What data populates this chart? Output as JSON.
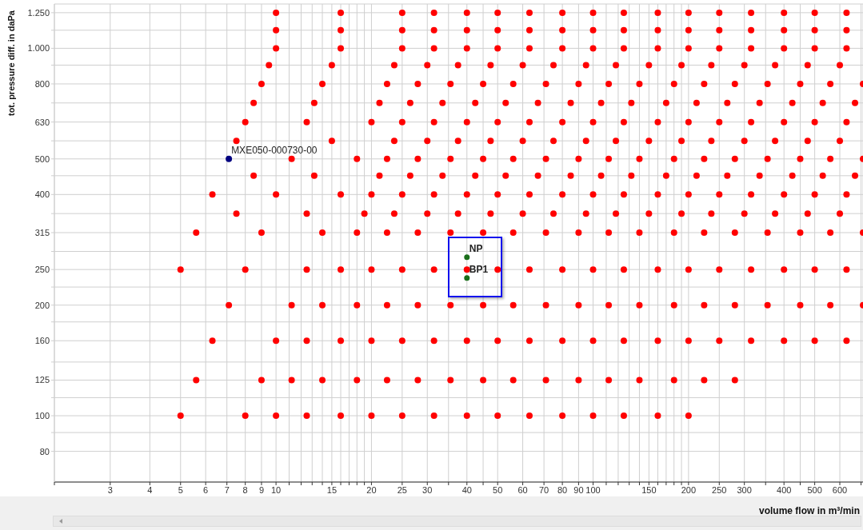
{
  "chart_data": {
    "type": "scatter",
    "xlabel": "volume flow in m³/min",
    "ylabel": "tot. pressure diff. in daPa",
    "log": "xy",
    "grid": true,
    "marker": "circle",
    "xlim": [
      2,
      710
    ],
    "ylim": [
      66,
      1320
    ],
    "xticks": [
      {
        "value": 2,
        "label": null
      },
      3,
      4,
      5,
      6,
      7,
      8,
      9,
      10,
      {
        "value": 11,
        "label": null
      },
      {
        "value": 12,
        "label": null
      },
      {
        "value": 13,
        "label": null
      },
      {
        "value": 14,
        "label": null
      },
      15,
      {
        "value": 16,
        "label": null
      },
      {
        "value": 17,
        "label": null
      },
      {
        "value": 18,
        "label": null
      },
      {
        "value": 19,
        "label": null
      },
      20,
      25,
      30,
      {
        "value": 35,
        "label": null
      },
      40,
      {
        "value": 45,
        "label": null
      },
      50,
      60,
      70,
      80,
      90,
      100,
      {
        "value": 110,
        "label": null
      },
      {
        "value": 120,
        "label": null
      },
      {
        "value": 130,
        "label": null
      },
      {
        "value": 140,
        "label": null
      },
      150,
      {
        "value": 160,
        "label": null
      },
      {
        "value": 170,
        "label": null
      },
      {
        "value": 180,
        "label": null
      },
      {
        "value": 190,
        "label": null
      },
      200,
      250,
      300,
      {
        "value": 350,
        "label": null
      },
      400,
      {
        "value": 450,
        "label": null
      },
      500,
      600,
      {
        "value": 700,
        "label": null
      }
    ],
    "yticks": [
      80,
      {
        "value": 90,
        "label": null
      },
      100,
      {
        "value": 112,
        "label": null
      },
      125,
      {
        "value": 140,
        "label": null
      },
      160,
      {
        "value": 180,
        "label": null
      },
      200,
      {
        "value": 224,
        "label": null
      },
      250,
      {
        "value": 280,
        "label": null
      },
      315,
      {
        "value": 355,
        "label": null
      },
      400,
      {
        "value": 450,
        "label": null
      },
      500,
      {
        "value": 560,
        "label": null
      },
      630,
      {
        "value": 710,
        "label": null
      },
      800,
      {
        "value": 900,
        "label": null
      },
      {
        "value": 1000,
        "label": "1.000"
      },
      {
        "value": 1120,
        "label": null
      },
      {
        "value": 1250,
        "label": "1.250"
      }
    ],
    "series": [
      {
        "color": "#ff0000",
        "x": [
          10,
          16,
          25,
          31.5,
          40,
          50,
          63,
          80,
          100,
          125,
          160,
          200,
          250,
          315,
          400,
          500,
          630
        ],
        "values": [
          1250,
          1250,
          1250,
          1250,
          1250,
          1250,
          1250,
          1250,
          1250,
          1250,
          1250,
          1250,
          1250,
          1250,
          1250,
          1250,
          1250
        ]
      },
      {
        "color": "#ff0000",
        "x": [
          10,
          16,
          25,
          31.5,
          40,
          50,
          63,
          80,
          100,
          125,
          160,
          200,
          250,
          315,
          400,
          500,
          630
        ],
        "values": [
          1120,
          1120,
          1120,
          1120,
          1120,
          1120,
          1120,
          1120,
          1120,
          1120,
          1120,
          1120,
          1120,
          1120,
          1120,
          1120,
          1120
        ]
      },
      {
        "color": "#ff0000",
        "x": [
          10,
          16,
          25,
          31.5,
          40,
          50,
          63,
          80,
          100,
          125,
          160,
          200,
          250,
          315,
          400,
          500,
          630
        ],
        "values": [
          1000,
          1000,
          1000,
          1000,
          1000,
          1000,
          1000,
          1000,
          1000,
          1000,
          1000,
          1000,
          1000,
          1000,
          1000,
          1000,
          1000
        ]
      },
      {
        "color": "#ff0000",
        "x": [
          9.5,
          15,
          23.6,
          30,
          37.5,
          47.5,
          60,
          75,
          95,
          118,
          150,
          190,
          236,
          300,
          375,
          475,
          600
        ],
        "values": [
          900,
          900,
          900,
          900,
          900,
          900,
          900,
          900,
          900,
          900,
          900,
          900,
          900,
          900,
          900,
          900,
          900
        ]
      },
      {
        "color": "#ff0000",
        "x": [
          9,
          14,
          22.4,
          28,
          35.5,
          45,
          56,
          71,
          90,
          112,
          140,
          180,
          224,
          280,
          355,
          450,
          560,
          710
        ],
        "values": [
          800,
          800,
          800,
          800,
          800,
          800,
          800,
          800,
          800,
          800,
          800,
          800,
          800,
          800,
          800,
          800,
          800,
          800
        ]
      },
      {
        "color": "#ff0000",
        "x": [
          8.5,
          13.2,
          21.2,
          26.5,
          33.5,
          42.5,
          53,
          67,
          85,
          106,
          132,
          170,
          212,
          265,
          335,
          425,
          530,
          670
        ],
        "values": [
          710,
          710,
          710,
          710,
          710,
          710,
          710,
          710,
          710,
          710,
          710,
          710,
          710,
          710,
          710,
          710,
          710,
          710
        ]
      },
      {
        "color": "#ff0000",
        "x": [
          8,
          12.5,
          20,
          25,
          31.5,
          40,
          50,
          63,
          80,
          100,
          125,
          160,
          200,
          250,
          315,
          400,
          500,
          630
        ],
        "values": [
          630,
          630,
          630,
          630,
          630,
          630,
          630,
          630,
          630,
          630,
          630,
          630,
          630,
          630,
          630,
          630,
          630,
          630
        ]
      },
      {
        "color": "#ff0000",
        "x": [
          7.5,
          15,
          23.6,
          30,
          37.5,
          47.5,
          60,
          75,
          95,
          118,
          150,
          190,
          236,
          300,
          375,
          475,
          600
        ],
        "values": [
          560,
          560,
          560,
          560,
          560,
          560,
          560,
          560,
          560,
          560,
          560,
          560,
          560,
          560,
          560,
          560,
          560
        ]
      },
      {
        "color": "#ff0000",
        "x": [
          11.2,
          18,
          22.4,
          28,
          35.5,
          45,
          56,
          71,
          90,
          112,
          140,
          180,
          224,
          280,
          355,
          450,
          560,
          710
        ],
        "values": [
          500,
          500,
          500,
          500,
          500,
          500,
          500,
          500,
          500,
          500,
          500,
          500,
          500,
          500,
          500,
          500,
          500,
          500
        ]
      },
      {
        "color": "#ff0000",
        "x": [
          8.5,
          13.2,
          21.2,
          26.5,
          33.5,
          42.5,
          53,
          67,
          85,
          106,
          132,
          170,
          212,
          265,
          335,
          425,
          530,
          670
        ],
        "values": [
          450,
          450,
          450,
          450,
          450,
          450,
          450,
          450,
          450,
          450,
          450,
          450,
          450,
          450,
          450,
          450,
          450,
          450
        ]
      },
      {
        "color": "#ff0000",
        "x": [
          6.3,
          10,
          16,
          20,
          25,
          31.5,
          40,
          50,
          63,
          80,
          100,
          125,
          160,
          200,
          250,
          315,
          400,
          500,
          630
        ],
        "values": [
          400,
          400,
          400,
          400,
          400,
          400,
          400,
          400,
          400,
          400,
          400,
          400,
          400,
          400,
          400,
          400,
          400,
          400,
          400
        ]
      },
      {
        "color": "#ff0000",
        "x": [
          7.5,
          12.5,
          19,
          23.6,
          30,
          37.5,
          47.5,
          60,
          75,
          95,
          118,
          150,
          190,
          236,
          300,
          375,
          475,
          600
        ],
        "values": [
          355,
          355,
          355,
          355,
          355,
          355,
          355,
          355,
          355,
          355,
          355,
          355,
          355,
          355,
          355,
          355,
          355,
          355
        ]
      },
      {
        "color": "#ff0000",
        "x": [
          5.6,
          9,
          14,
          18,
          22.4,
          28,
          35.5,
          45,
          56,
          71,
          90,
          112,
          140,
          180,
          224,
          280,
          355,
          450,
          560,
          710
        ],
        "values": [
          315,
          315,
          315,
          315,
          315,
          315,
          315,
          315,
          315,
          315,
          315,
          315,
          315,
          315,
          315,
          315,
          315,
          315,
          315,
          315
        ]
      },
      {
        "color": "#ff0000",
        "x": [
          5,
          8,
          12.5,
          16,
          20,
          25,
          31.5,
          40,
          50,
          63,
          80,
          100,
          125,
          160,
          200,
          250,
          315,
          400,
          500,
          630
        ],
        "values": [
          250,
          250,
          250,
          250,
          250,
          250,
          250,
          250,
          250,
          250,
          250,
          250,
          250,
          250,
          250,
          250,
          250,
          250,
          250,
          250
        ]
      },
      {
        "color": "#ff0000",
        "x": [
          7.1,
          11.2,
          14,
          18,
          22.4,
          28,
          35.5,
          45,
          56,
          71,
          90,
          112,
          140,
          180,
          224,
          280,
          355,
          450,
          560,
          710
        ],
        "values": [
          200,
          200,
          200,
          200,
          200,
          200,
          200,
          200,
          200,
          200,
          200,
          200,
          200,
          200,
          200,
          200,
          200,
          200,
          200,
          200
        ]
      },
      {
        "color": "#ff0000",
        "x": [
          6.3,
          10,
          12.5,
          16,
          20,
          25,
          31.5,
          40,
          50,
          63,
          80,
          100,
          125,
          160,
          200,
          250,
          315,
          400,
          500,
          630
        ],
        "values": [
          160,
          160,
          160,
          160,
          160,
          160,
          160,
          160,
          160,
          160,
          160,
          160,
          160,
          160,
          160,
          160,
          160,
          160,
          160,
          160
        ]
      },
      {
        "color": "#ff0000",
        "x": [
          5.6,
          9,
          11.2,
          14,
          18,
          22.4,
          28,
          35.5,
          45,
          56,
          71,
          90,
          112,
          140,
          180,
          224,
          280
        ],
        "values": [
          125,
          125,
          125,
          125,
          125,
          125,
          125,
          125,
          125,
          125,
          125,
          125,
          125,
          125,
          125,
          125,
          125
        ]
      },
      {
        "color": "#ff0000",
        "x": [
          5,
          8,
          10,
          12.5,
          16,
          20,
          25,
          31.5,
          40,
          50,
          63,
          80,
          100,
          125,
          160,
          200
        ],
        "values": [
          100,
          100,
          100,
          100,
          100,
          100,
          100,
          100,
          100,
          100,
          100,
          100,
          100,
          100,
          100,
          100
        ]
      },
      {
        "name": "MXE050-000730-00",
        "color": "#000080",
        "x": [
          7.1
        ],
        "values": [
          500
        ]
      },
      {
        "name": "NP",
        "color": "#1a6e1a",
        "x": [
          40
        ],
        "values": [
          270
        ]
      },
      {
        "name": "BP1",
        "color": "#1a6e1a",
        "x": [
          40
        ],
        "values": [
          237
        ]
      }
    ]
  }
}
